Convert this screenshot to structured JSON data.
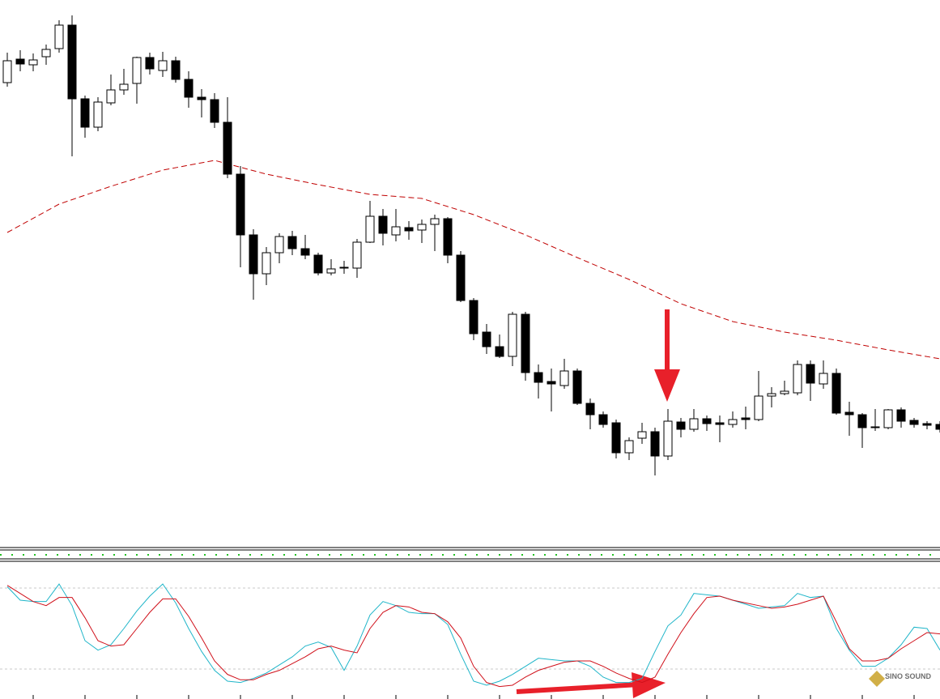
{
  "chart_data": [
    {
      "type": "candlestick",
      "ylim": [
        0,
        670
      ],
      "color_up": "#ffffff",
      "color_down": "#000000",
      "open": [
        568,
        597,
        590,
        600,
        610,
        639,
        548,
        513,
        543,
        559,
        567,
        599,
        583,
        595,
        572,
        550,
        547,
        519,
        455,
        380,
        332,
        358,
        378,
        363,
        355,
        333,
        340,
        339,
        371,
        403,
        380,
        389,
        386,
        393,
        400,
        355,
        299,
        260,
        242,
        230,
        282,
        210,
        199,
        194,
        212,
        172,
        158,
        148,
        111,
        129,
        137,
        107,
        149,
        140,
        153,
        148,
        146,
        154,
        152,
        181,
        184,
        185,
        220,
        196,
        209,
        161,
        158,
        143,
        142,
        164,
        151,
        147,
        146
      ],
      "high": [
        605,
        608,
        604,
        615,
        645,
        651,
        552,
        550,
        578,
        585,
        600,
        605,
        606,
        600,
        582,
        560,
        555,
        550,
        465,
        387,
        365,
        382,
        385,
        380,
        358,
        350,
        348,
        375,
        422,
        412,
        412,
        397,
        399,
        405,
        402,
        360,
        302,
        270,
        257,
        285,
        285,
        220,
        215,
        227,
        215,
        178,
        162,
        152,
        130,
        148,
        142,
        165,
        154,
        165,
        157,
        157,
        162,
        168,
        212,
        192,
        200,
        225,
        225,
        225,
        215,
        174,
        160,
        165,
        165,
        167,
        154,
        150,
        150
      ],
      "low": [
        563,
        582,
        582,
        590,
        605,
        477,
        500,
        508,
        540,
        553,
        542,
        578,
        575,
        568,
        537,
        525,
        512,
        450,
        340,
        300,
        318,
        345,
        355,
        350,
        330,
        330,
        332,
        327,
        370,
        367,
        372,
        374,
        370,
        360,
        345,
        297,
        250,
        233,
        228,
        218,
        200,
        178,
        162,
        190,
        170,
        140,
        142,
        104,
        102,
        122,
        83,
        102,
        130,
        137,
        138,
        124,
        142,
        140,
        150,
        167,
        182,
        182,
        175,
        190,
        158,
        132,
        117,
        138,
        140,
        142,
        142,
        140,
        136
      ],
      "close": [
        595,
        591,
        596,
        609,
        639,
        548,
        513,
        544,
        559,
        566,
        599,
        585,
        595,
        572,
        550,
        547,
        519,
        455,
        380,
        332,
        358,
        378,
        363,
        355,
        333,
        338,
        339,
        371,
        403,
        382,
        390,
        385,
        393,
        400,
        355,
        299,
        258,
        242,
        230,
        282,
        210,
        198,
        196,
        212,
        172,
        158,
        146,
        111,
        126,
        137,
        107,
        150,
        140,
        153,
        147,
        146,
        152,
        152,
        181,
        184,
        187,
        220,
        197,
        209,
        160,
        158,
        142,
        142,
        164,
        150,
        146,
        145,
        140
      ],
      "ma": {
        "color": "#c00000",
        "x": [
          0,
          4,
          8,
          12,
          16,
          20,
          24,
          28,
          32,
          36,
          40,
          44,
          48,
          52,
          56,
          60,
          64,
          68,
          72
        ],
        "values": [
          383,
          418,
          440,
          460,
          472,
          455,
          442,
          430,
          425,
          405,
          380,
          352,
          325,
          295,
          273,
          260,
          250,
          238,
          227
        ]
      }
    },
    {
      "type": "line",
      "ylim": [
        0,
        100
      ],
      "levels": [
        20,
        80
      ],
      "series": [
        {
          "color": "#1fb5c9",
          "values": [
            81,
            71,
            70,
            70,
            83,
            67,
            41,
            34,
            38,
            50,
            63,
            74,
            83,
            69,
            50,
            33,
            19,
            11,
            10,
            13,
            17,
            23,
            29,
            37,
            40,
            36,
            19,
            37,
            60,
            70,
            67,
            62,
            61,
            61,
            53,
            31,
            11,
            8,
            11,
            16,
            22,
            28,
            27,
            26,
            26,
            22,
            14,
            10,
            10,
            13,
            33,
            52,
            60,
            76,
            75,
            74,
            71,
            68,
            65,
            66,
            67,
            76,
            73,
            74,
            50,
            34,
            22,
            22,
            28,
            38,
            51,
            50,
            34
          ]
        },
        {
          "color": "#d0101a",
          "values": [
            82,
            76,
            70,
            67,
            73,
            73,
            58,
            41,
            37,
            38,
            50,
            62,
            72,
            72,
            59,
            43,
            26,
            16,
            12,
            12,
            16,
            19,
            24,
            29,
            35,
            37,
            34,
            32,
            50,
            62,
            67,
            66,
            62,
            61,
            55,
            43,
            22,
            10,
            7,
            8,
            14,
            19,
            22,
            25,
            26,
            26,
            22,
            17,
            13,
            10,
            14,
            31,
            47,
            61,
            73,
            74,
            71,
            69,
            67,
            65,
            66,
            68,
            71,
            74,
            55,
            35,
            26,
            26,
            28,
            35,
            41,
            47,
            46
          ]
        }
      ]
    }
  ],
  "watermark": "SINO SOUND"
}
